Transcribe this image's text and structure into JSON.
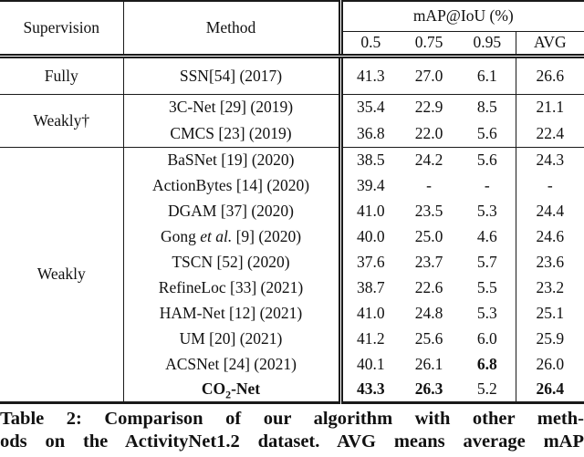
{
  "table": {
    "header": {
      "supervision": "Supervision",
      "method": "Method",
      "map_group": "mAP@IoU (%)",
      "iou_cols": [
        "0.5",
        "0.75",
        "0.95"
      ],
      "avg": "AVG"
    },
    "groups": [
      {
        "supervision": "Fully",
        "rows": [
          {
            "method": [
              {
                "t": "SSN[54] (2017)"
              }
            ],
            "values": [
              "41.3",
              "27.0",
              "6.1",
              "26.6"
            ],
            "bold": [
              false,
              false,
              false,
              false
            ]
          }
        ]
      },
      {
        "supervision": "Weakly†",
        "rows": [
          {
            "method": [
              {
                "t": "3C-Net [29] (2019)"
              }
            ],
            "values": [
              "35.4",
              "22.9",
              "8.5",
              "21.1"
            ],
            "bold": [
              false,
              false,
              false,
              false
            ]
          },
          {
            "method": [
              {
                "t": "CMCS [23] (2019)"
              }
            ],
            "values": [
              "36.8",
              "22.0",
              "5.6",
              "22.4"
            ],
            "bold": [
              false,
              false,
              false,
              false
            ]
          }
        ]
      },
      {
        "supervision": "Weakly",
        "rows": [
          {
            "method": [
              {
                "t": "BaSNet [19] (2020)"
              }
            ],
            "values": [
              "38.5",
              "24.2",
              "5.6",
              "24.3"
            ],
            "bold": [
              false,
              false,
              false,
              false
            ]
          },
          {
            "method": [
              {
                "t": "ActionBytes [14] (2020)"
              }
            ],
            "values": [
              "39.4",
              "-",
              "-",
              "-"
            ],
            "bold": [
              false,
              false,
              false,
              false
            ]
          },
          {
            "method": [
              {
                "t": "DGAM [37] (2020)"
              }
            ],
            "values": [
              "41.0",
              "23.5",
              "5.3",
              "24.4"
            ],
            "bold": [
              false,
              false,
              false,
              false
            ]
          },
          {
            "method": [
              {
                "t": "Gong "
              },
              {
                "t": "et al.",
                "i": true
              },
              {
                "t": " [9] (2020)"
              }
            ],
            "values": [
              "40.0",
              "25.0",
              "4.6",
              "24.6"
            ],
            "bold": [
              false,
              false,
              false,
              false
            ]
          },
          {
            "method": [
              {
                "t": "TSCN [52] (2020)"
              }
            ],
            "values": [
              "37.6",
              "23.7",
              "5.7",
              "23.6"
            ],
            "bold": [
              false,
              false,
              false,
              false
            ]
          },
          {
            "method": [
              {
                "t": "RefineLoc [33] (2021)"
              }
            ],
            "values": [
              "38.7",
              "22.6",
              "5.5",
              "23.2"
            ],
            "bold": [
              false,
              false,
              false,
              false
            ]
          },
          {
            "method": [
              {
                "t": "HAM-Net [12] (2021)"
              }
            ],
            "values": [
              "41.0",
              "24.8",
              "5.3",
              "25.1"
            ],
            "bold": [
              false,
              false,
              false,
              false
            ]
          },
          {
            "method": [
              {
                "t": "UM [20] (2021)"
              }
            ],
            "values": [
              "41.2",
              "25.6",
              "6.0",
              "25.9"
            ],
            "bold": [
              false,
              false,
              false,
              false
            ]
          },
          {
            "method": [
              {
                "t": "ACSNet [24] (2021)"
              }
            ],
            "values": [
              "40.1",
              "26.1",
              "6.8",
              "26.0"
            ],
            "bold": [
              false,
              false,
              true,
              false
            ]
          },
          {
            "method": [
              {
                "t": "CO",
                "b": true
              },
              {
                "t": "2",
                "b": true,
                "sub": true
              },
              {
                "t": "-Net",
                "b": true
              }
            ],
            "values": [
              "43.3",
              "26.3",
              "5.2",
              "26.4"
            ],
            "bold": [
              true,
              true,
              false,
              true
            ]
          }
        ]
      }
    ]
  },
  "caption": {
    "line1": "Table 2: Comparison of our algorithm with other meth-",
    "line2": "ods on the ActivityNet1.2 dataset. AVG means average mAP"
  },
  "colors": {
    "background": "#ffffff",
    "text": "#111111",
    "rule": "#1a1a1a"
  }
}
